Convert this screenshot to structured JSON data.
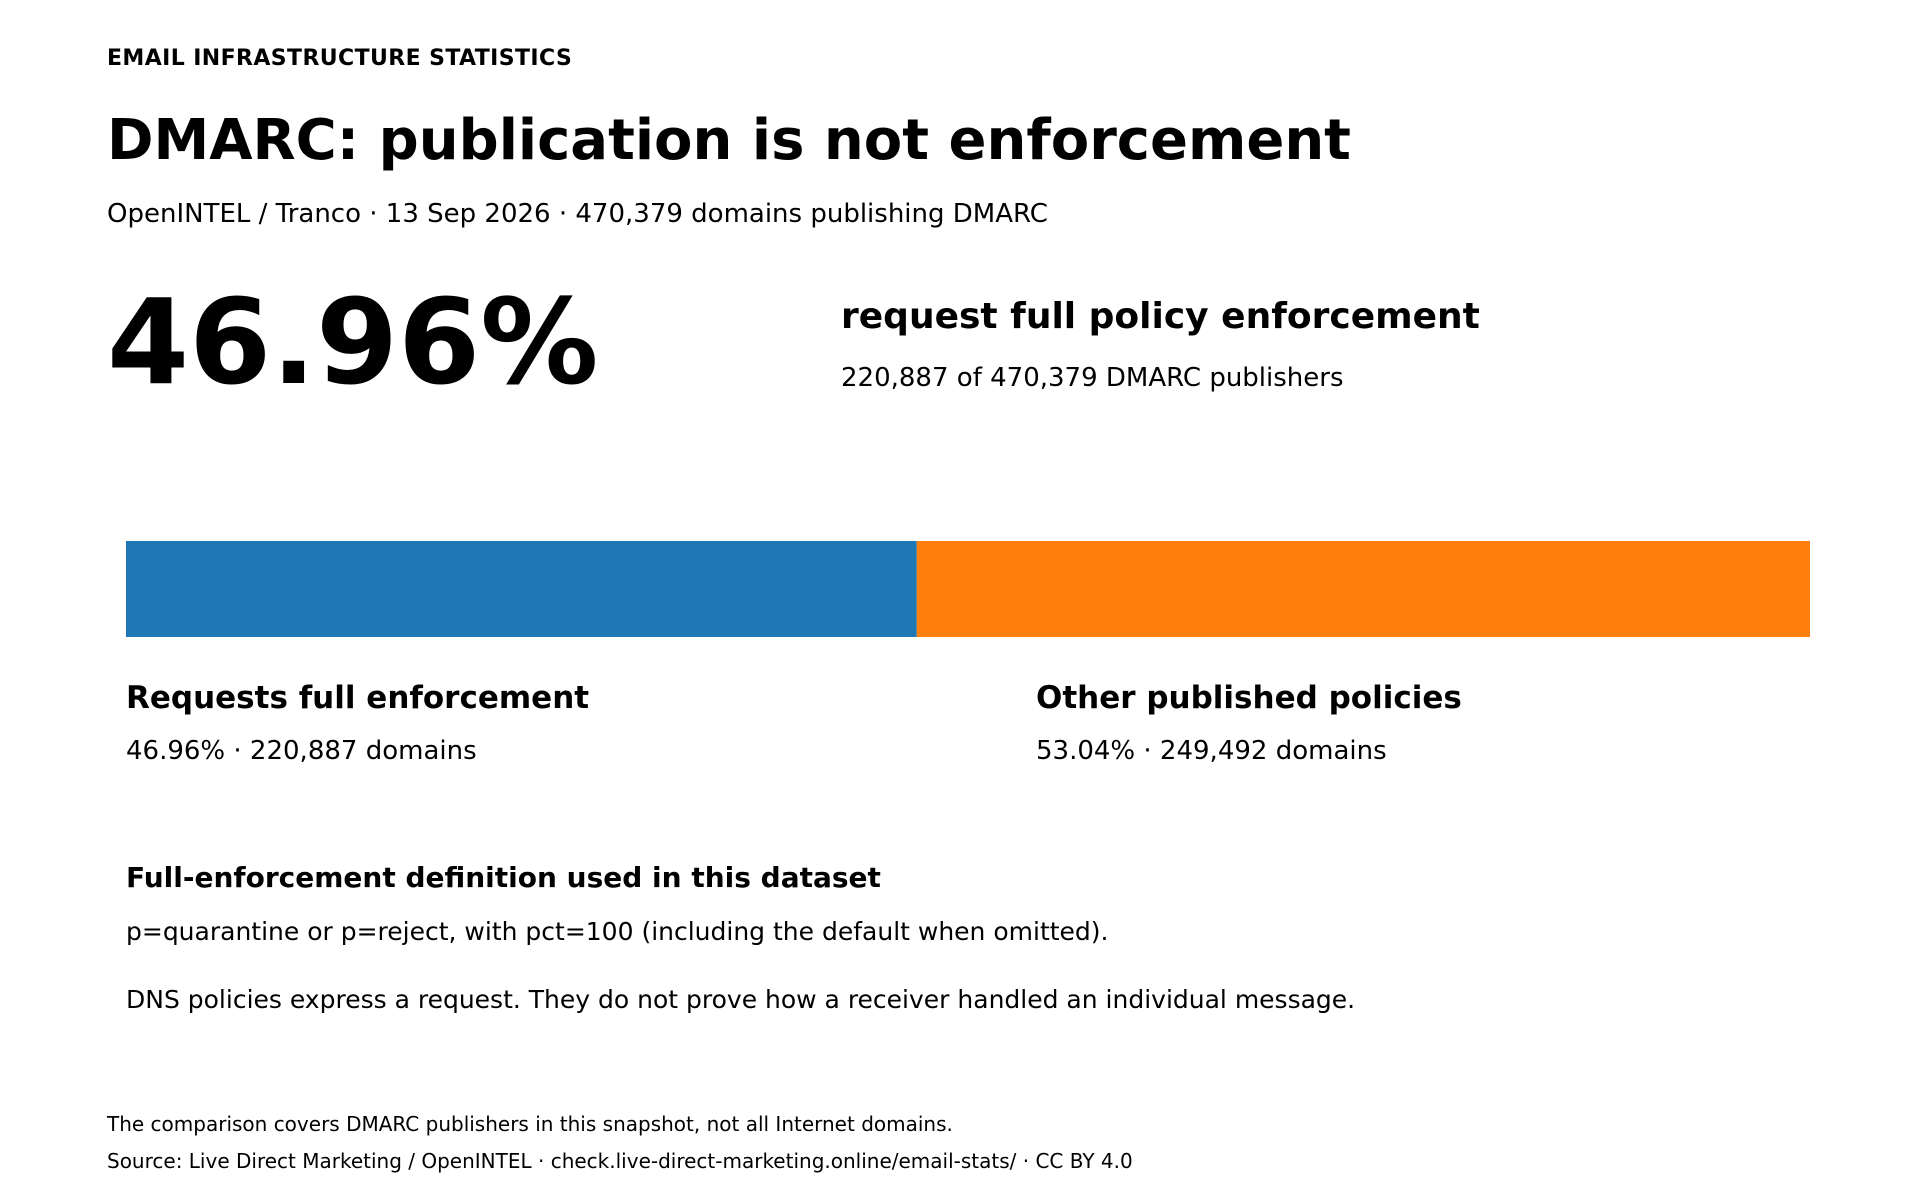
{
  "header": {
    "eyebrow": "EMAIL INFRASTRUCTURE STATISTICS",
    "title": "DMARC: publication is not enforcement",
    "subtitle": "OpenINTEL / Tranco  ·  13 Sep 2026  ·  470,379 domains publishing DMARC"
  },
  "headline": {
    "value": "46.96%",
    "label": "request full policy enforcement",
    "detail": "220,887 of 470,379 DMARC publishers"
  },
  "chart_data": {
    "type": "bar",
    "orientation": "horizontal-stacked",
    "total": 470379,
    "series": [
      {
        "name": "Requests full enforcement",
        "value": 220887,
        "percent": 46.96,
        "color": "#1f77b4",
        "detail": "46.96%  ·  220,887 domains"
      },
      {
        "name": "Other published policies",
        "value": 249492,
        "percent": 53.04,
        "color": "#ff7f0e",
        "detail": "53.04%  ·  249,492 domains"
      }
    ]
  },
  "definition": {
    "title": "Full-enforcement definition used in this dataset",
    "text": "p=quarantine or p=reject, with pct=100 (including the default when omitted).",
    "note": "DNS policies express a request. They do not prove how a receiver handled an individual message."
  },
  "footer": {
    "scope": "The comparison covers DMARC publishers in this snapshot, not all Internet domains.",
    "source": "Source: Live Direct Marketing / OpenINTEL  ·  check.live-direct-marketing.online/email-stats/  ·  CC BY 4.0"
  }
}
